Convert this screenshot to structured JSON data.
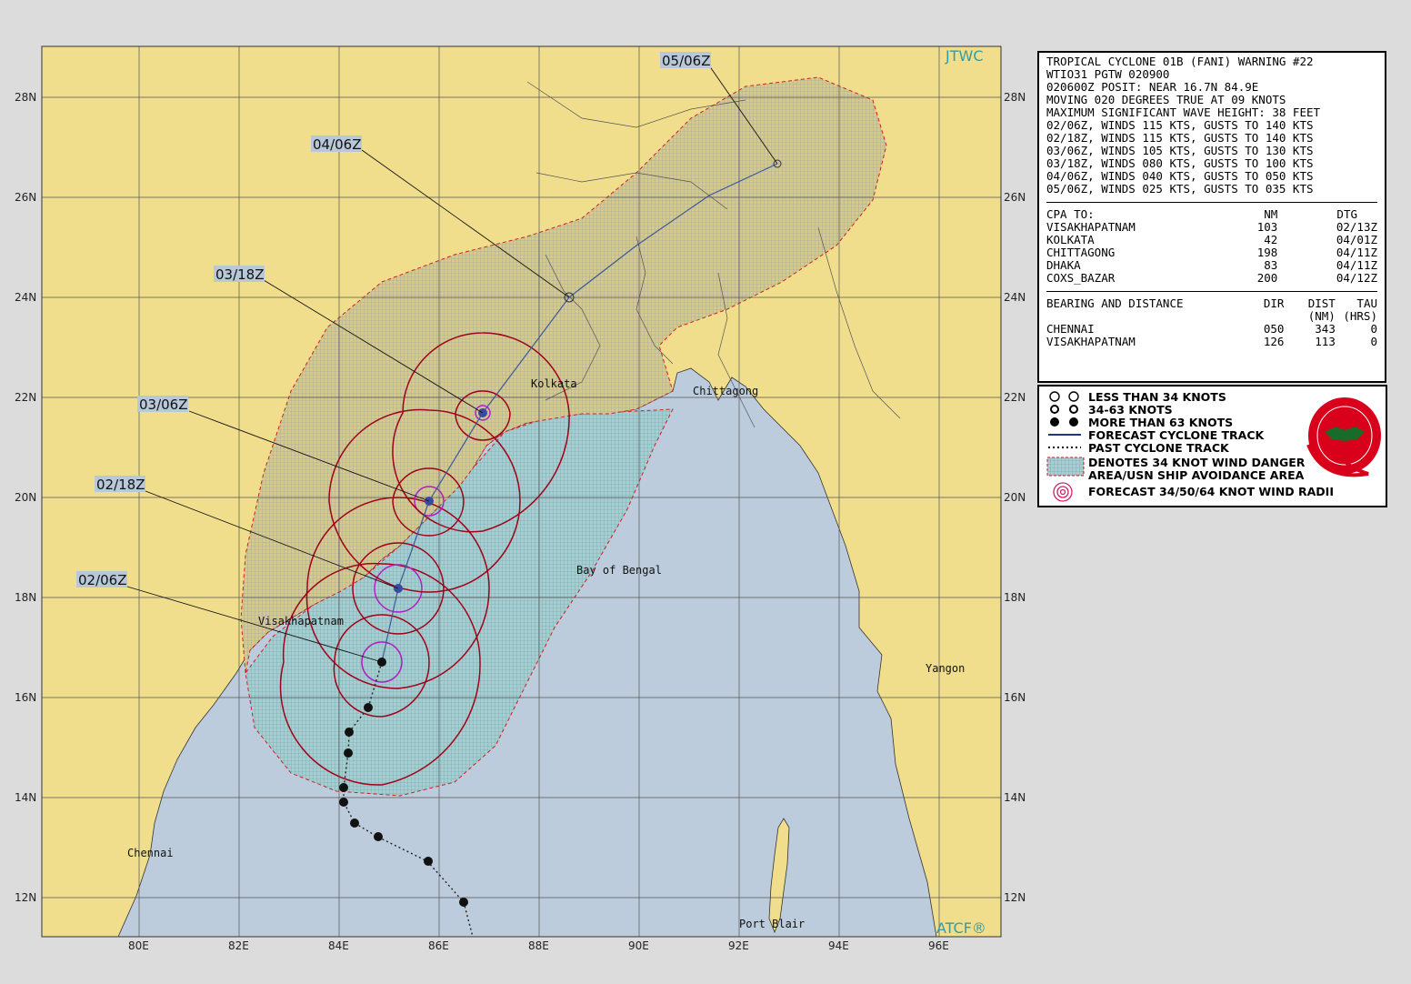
{
  "warning": {
    "lines": [
      "TROPICAL CYCLONE 01B (FANI) WARNING #22",
      "WTIO31 PGTW 020900",
      "020600Z POSIT: NEAR 16.7N 84.9E",
      "MOVING 020 DEGREES TRUE AT 09 KNOTS",
      "MAXIMUM SIGNIFICANT WAVE HEIGHT: 38 FEET",
      "02/06Z, WINDS 115 KTS, GUSTS TO 140 KTS",
      "02/18Z, WINDS 115 KTS, GUSTS TO 140 KTS",
      "03/06Z, WINDS 105 KTS, GUSTS TO 130 KTS",
      "03/18Z, WINDS 080 KTS, GUSTS TO 100 KTS",
      "04/06Z, WINDS 040 KTS, GUSTS TO 050 KTS",
      "05/06Z, WINDS 025 KTS, GUSTS TO 035 KTS"
    ],
    "cpa_header": {
      "to": "CPA TO:",
      "nm": "NM",
      "dtg": "DTG"
    },
    "cpa": [
      {
        "name": "VISAKHAPATNAM",
        "nm": "103",
        "dtg": "02/13Z"
      },
      {
        "name": "KOLKATA",
        "nm": "42",
        "dtg": "04/01Z"
      },
      {
        "name": "CHITTAGONG",
        "nm": "198",
        "dtg": "04/11Z"
      },
      {
        "name": "DHAKA",
        "nm": "83",
        "dtg": "04/11Z"
      },
      {
        "name": "COXS_BAZAR",
        "nm": "200",
        "dtg": "04/12Z"
      }
    ],
    "bd_header": {
      "title": "BEARING AND DISTANCE",
      "dir": "DIR",
      "dist": "DIST",
      "tau": "TAU",
      "dist_unit": "(NM)",
      "tau_unit": "(HRS)"
    },
    "bearing": [
      {
        "name": "CHENNAI",
        "dir": "050",
        "dist": "343",
        "tau": "0"
      },
      {
        "name": "VISAKHAPATNAM",
        "dir": "126",
        "dist": "113",
        "tau": "0"
      }
    ]
  },
  "legend": {
    "items": [
      "LESS THAN 34 KNOTS",
      "34-63 KNOTS",
      "MORE THAN 63 KNOTS",
      "FORECAST CYCLONE TRACK",
      "PAST CYCLONE TRACK",
      "DENOTES 34 KNOT WIND DANGER",
      "AREA/USN SHIP AVOIDANCE AREA",
      "FORECAST 34/50/64 KNOT WIND RADII"
    ],
    "logo_text": "JOINT TYPHOON WARNING CENTER"
  },
  "map": {
    "brand_top": "JTWC",
    "brand_bottom": "ATCF®",
    "lat_labels": [
      "28N",
      "26N",
      "24N",
      "22N",
      "20N",
      "18N",
      "16N",
      "14N",
      "12N"
    ],
    "lon_labels": [
      "80E",
      "82E",
      "84E",
      "86E",
      "88E",
      "90E",
      "92E",
      "94E",
      "96E"
    ],
    "places": [
      "Kolkata",
      "Chittagong",
      "Visakhapatnam",
      "Bay of Bengal",
      "Yangon",
      "Chennai",
      "Port Blair"
    ],
    "dtg_labels": [
      "05/06Z",
      "04/06Z",
      "03/18Z",
      "03/06Z",
      "02/18Z",
      "02/06Z"
    ],
    "colors": {
      "land": "#f0de8c",
      "sea": "#bcccdc",
      "track": "#3a5a9a",
      "radii": "#a00018",
      "radii64": "#b020c0"
    }
  }
}
